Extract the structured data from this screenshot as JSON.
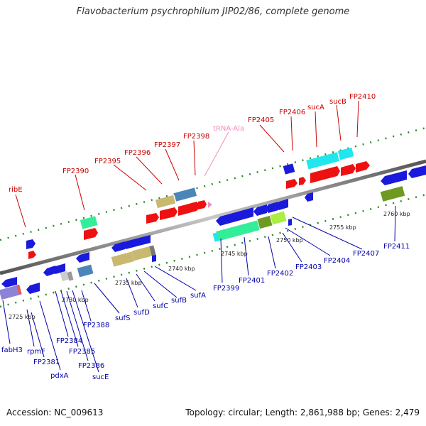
{
  "title": "Flavobacterium psychrophilum JIP02/86, complete genome",
  "accession": "Accession: NC_009613",
  "summary": "Topology: circular; Length: 2,861,988 bp; Genes: 2,479",
  "colors": {
    "forward_cds": "#ee1111",
    "reverse_cds": "#1a1adc",
    "forward_label": "#cc0000",
    "reverse_label": "#0000aa",
    "rna_label": "#ee8fc0",
    "backbone": "#888888",
    "tick": "#2e8b2e",
    "cyan": "#22e6ee",
    "seagreen": "#33ee99",
    "khaki": "#c8b870",
    "steelblue": "#4a86b8",
    "olive": "#6e9a22",
    "lavender": "#8c82d8"
  },
  "forward_labels": [
    "ribE",
    "FP2390",
    "FP2395",
    "FP2396",
    "FP2397",
    "FP2398",
    "FP2405",
    "FP2406",
    "sucA",
    "sucB",
    "FP2410"
  ],
  "rna_labels": [
    "tRNA-Ala"
  ],
  "reverse_labels": [
    "fabH3",
    "rpmF",
    "FP2381",
    "pdxA",
    "FP2384",
    "FP2385",
    "FP2386",
    "sucE",
    "FP2388",
    "sufS",
    "sufD",
    "sufC",
    "sufB",
    "sufA",
    "FP2399",
    "FP2401",
    "FP2402",
    "FP2403",
    "FP2404",
    "FP2407",
    "FP2411"
  ],
  "kbp_labels": [
    "2725 kbp",
    "2730 kbp",
    "2735 kbp",
    "2740 kbp",
    "2745 kbp",
    "2750 kbp",
    "2755 kbp",
    "2760 kbp"
  ]
}
